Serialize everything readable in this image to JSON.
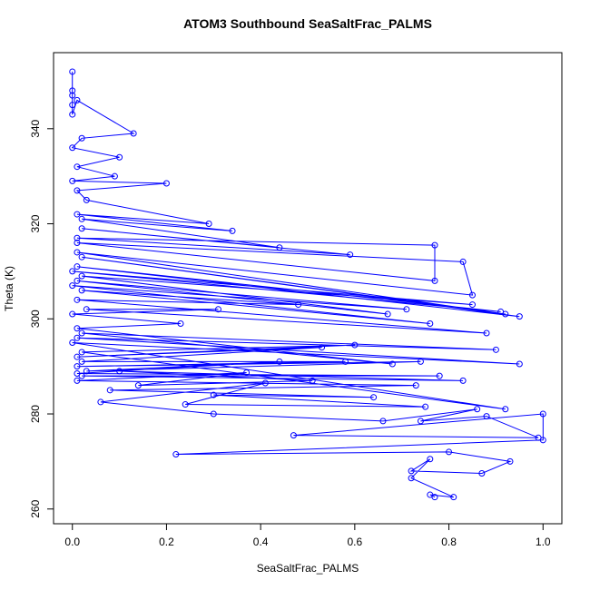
{
  "chart_data": {
    "type": "line",
    "title": "ATOM3 Southbound SeaSaltFrac_PALMS",
    "x_label": "SeaSaltFrac_PALMS",
    "y_label": "Theta (K)",
    "xlim": [
      -0.04,
      1.04
    ],
    "ylim": [
      256.9,
      356.0
    ],
    "xticks": [
      {
        "value": 0,
        "label": "0.0"
      },
      0.2,
      0.4,
      0.6,
      0.8,
      {
        "value": 1,
        "label": "1.0"
      }
    ],
    "yticks": [
      260,
      280,
      300,
      320,
      340
    ],
    "x": [
      0,
      0,
      0,
      0,
      0,
      0.01,
      0.13,
      0.02,
      0,
      0.1,
      0.01,
      0.09,
      0,
      0.2,
      0.01,
      0.03,
      0.29,
      0.01,
      0.34,
      0.02,
      0.44,
      0.02,
      0.59,
      0.01,
      0.77,
      0.77,
      0.01,
      0.83,
      0.85,
      0.01,
      0.92,
      0.02,
      0.95,
      0.01,
      0.91,
      0,
      0.85,
      0.02,
      0.67,
      0.01,
      0.71,
      0,
      0.76,
      0.02,
      0.48,
      0.01,
      0.88,
      0.03,
      0.31,
      0,
      0.23,
      0.01,
      0.68,
      0.02,
      0.9,
      0.01,
      0.95,
      0,
      0.92,
      0.02,
      0.6,
      0.01,
      0.53,
      0.02,
      0.58,
      0.01,
      0.74,
      0.03,
      0.44,
      0.01,
      0.78,
      0.02,
      0.83,
      0.1,
      0.51,
      0.14,
      0.37,
      0.01,
      0.73,
      0.08,
      0.64,
      0.3,
      0.75,
      0.24,
      0.41,
      0.06,
      0.3,
      0.66,
      0.86,
      0.74,
      0.88,
      0.99,
      0.47,
      1.0,
      1.0,
      0.22,
      0.8,
      0.93,
      0.87,
      0.72,
      0.76,
      0.72,
      0.81,
      0.76,
      0.77
    ],
    "series": [
      {
        "color": "#0000ff",
        "values": [
          352,
          348,
          347,
          345,
          343,
          346,
          339,
          338,
          336,
          334,
          332,
          330,
          329,
          328.5,
          327,
          325,
          320,
          322,
          318.5,
          321,
          315,
          319,
          313.5,
          317,
          315.5,
          308,
          316,
          312,
          305,
          314,
          301,
          313,
          300.5,
          311,
          301.5,
          310,
          303,
          309,
          301,
          308,
          302,
          307,
          299,
          306,
          303,
          304,
          297,
          302,
          302,
          301,
          299,
          298,
          290.5,
          297,
          293.5,
          296,
          290.5,
          295,
          281,
          293,
          294.5,
          292,
          294,
          291,
          291,
          290,
          291,
          289,
          291,
          288.5,
          288,
          288,
          287,
          289,
          287,
          286,
          288.7,
          287,
          286,
          285,
          283.5,
          284,
          281.5,
          282,
          286.5,
          282.5,
          280,
          278.5,
          281,
          278.5,
          279.5,
          275,
          275.5,
          280,
          274.5,
          271.5,
          272,
          270,
          267.5,
          268,
          270.5,
          266.5,
          262.5,
          263,
          262.5
        ]
      }
    ]
  }
}
